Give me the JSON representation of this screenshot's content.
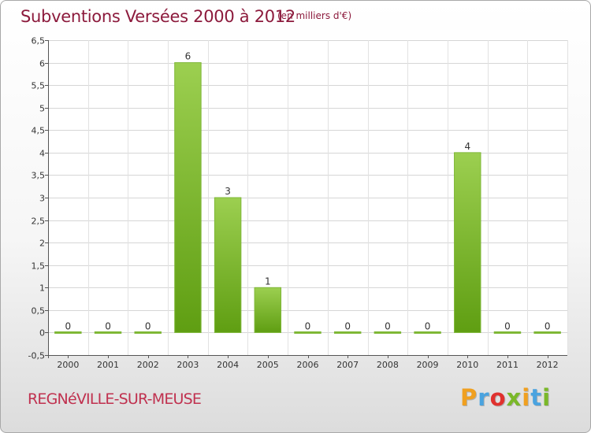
{
  "header": {
    "title": "Subventions Versées 2000 à 2012",
    "unit": "(en milliers d'€)"
  },
  "footer": {
    "commune": "REGNéVILLE-SUR-MEUSE",
    "brand_letters": [
      {
        "ch": "P",
        "color": "#f0a020"
      },
      {
        "ch": "r",
        "color": "#4aa3df"
      },
      {
        "ch": "o",
        "color": "#e0312e"
      },
      {
        "ch": "x",
        "color": "#7ab829"
      },
      {
        "ch": "i",
        "color": "#f0a020"
      },
      {
        "ch": "t",
        "color": "#4aa3df"
      },
      {
        "ch": "i",
        "color": "#7ab829"
      }
    ]
  },
  "chart_data": {
    "type": "bar",
    "title": "Subventions Versées 2000 à 2012",
    "unit_note": "(en milliers d'€)",
    "categories": [
      "2000",
      "2001",
      "2002",
      "2003",
      "2004",
      "2005",
      "2006",
      "2007",
      "2008",
      "2009",
      "2010",
      "2011",
      "2012"
    ],
    "values": [
      0,
      0,
      0,
      6,
      3,
      1,
      0,
      0,
      0,
      0,
      4,
      0,
      0
    ],
    "data_labels": [
      "0",
      "0",
      "0",
      "6",
      "3",
      "1",
      "0",
      "0",
      "0",
      "0",
      "4",
      "0",
      "0"
    ],
    "ylim": [
      -0.5,
      6.5
    ],
    "yticks": [
      "-0,5",
      "0",
      "0,5",
      "1",
      "1,5",
      "2",
      "2,5",
      "3",
      "3,5",
      "4",
      "4,5",
      "5",
      "5,5",
      "6",
      "6,5"
    ],
    "ytick_values": [
      -0.5,
      0,
      0.5,
      1,
      1.5,
      2,
      2.5,
      3,
      3.5,
      4,
      4.5,
      5,
      5.5,
      6,
      6.5
    ],
    "grid": true,
    "bar_color_light": "#9ccf50",
    "bar_color_dark": "#5f9e12"
  }
}
